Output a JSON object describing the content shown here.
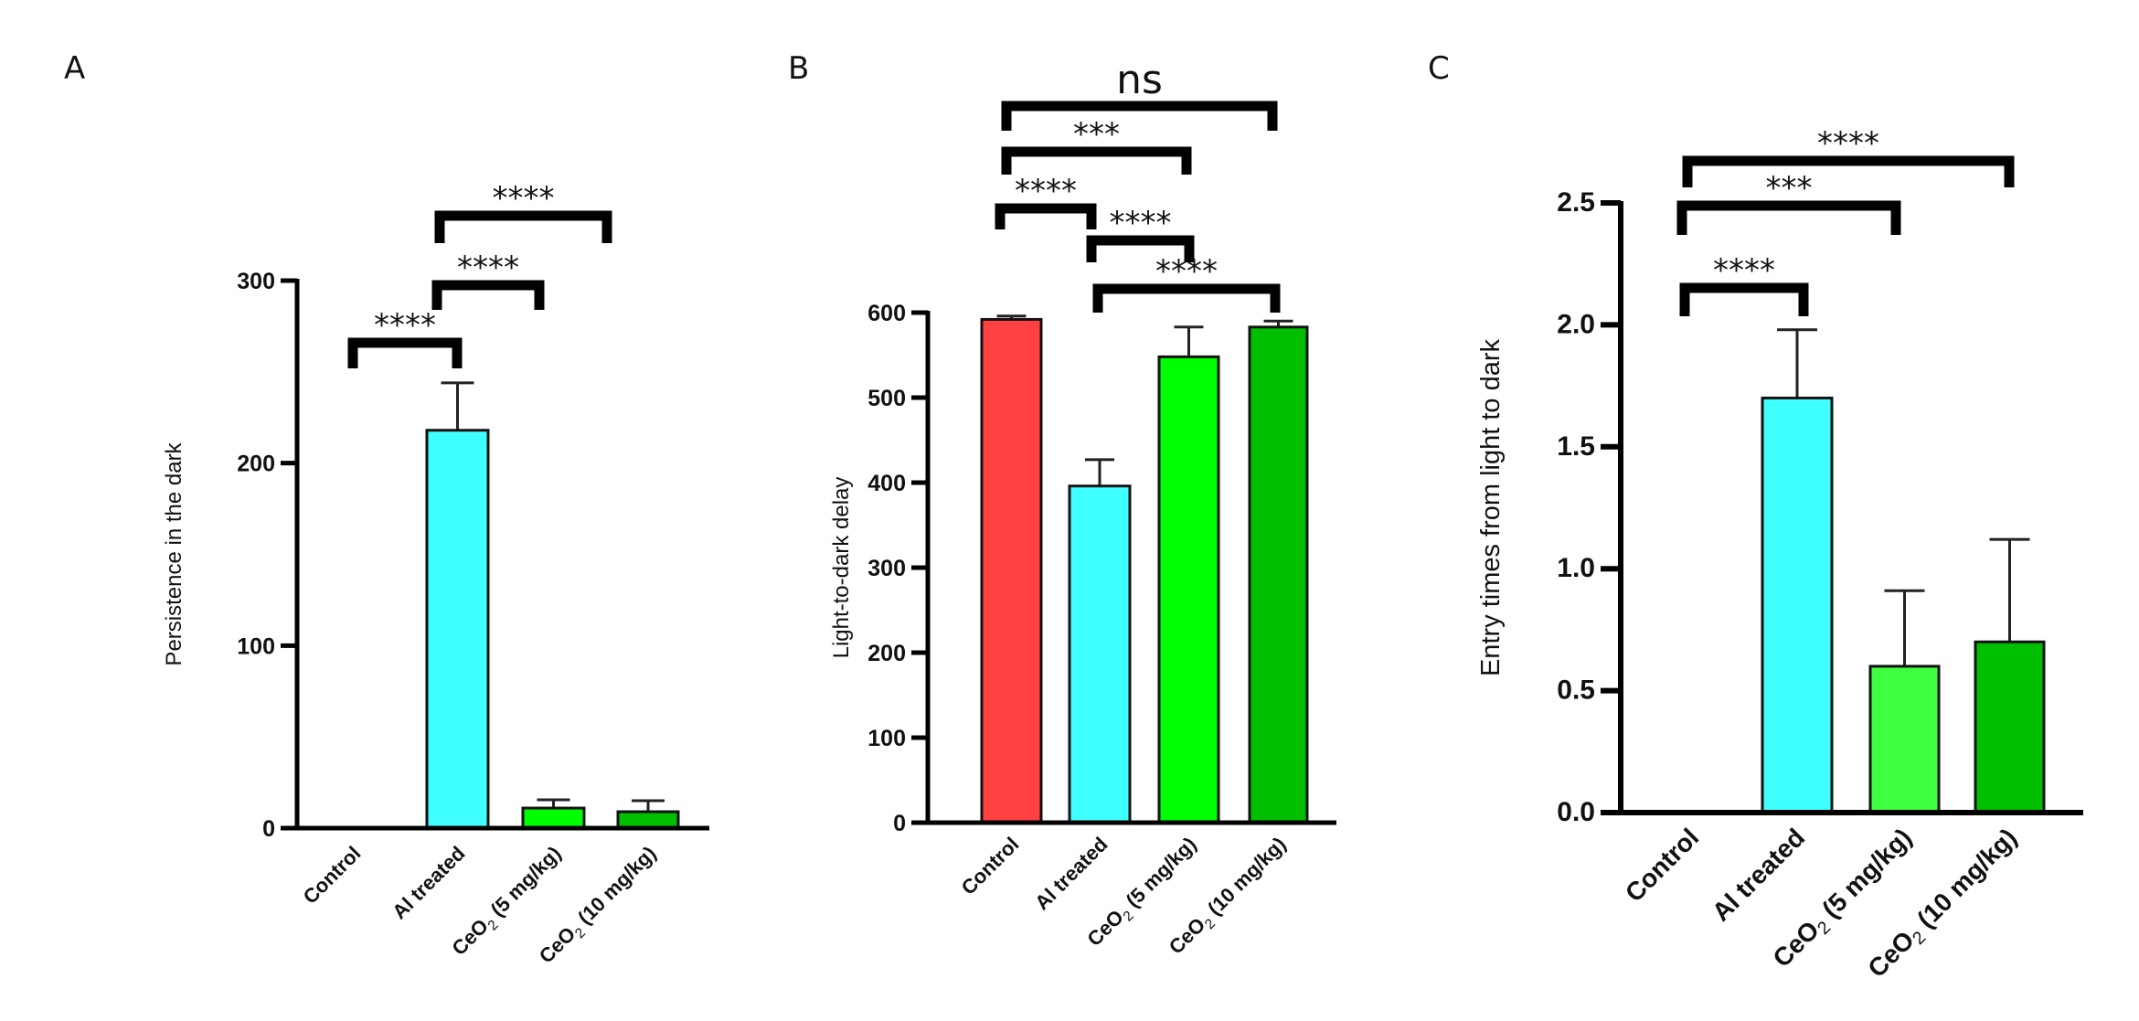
{
  "chart_data": [
    {
      "panel": "A",
      "type": "bar",
      "title": "",
      "xlabel": "",
      "ylabel": "Persistence in the dark",
      "ylim": [
        0,
        300
      ],
      "yticks": [
        0,
        100,
        200,
        300
      ],
      "ytick_labels": [
        "0",
        "100",
        "200",
        "300"
      ],
      "grid": false,
      "categories": [
        "Control",
        "Al treated",
        "CeO2 (5 mg/kg)",
        "CeO2 (10 mg/kg)"
      ],
      "category_labels": [
        {
          "main": "Control",
          "sub": "",
          "rest": ""
        },
        {
          "main": "Al treated",
          "sub": "",
          "rest": ""
        },
        {
          "main": "CeO",
          "sub": "2",
          "rest": " (5 mg/kg)"
        },
        {
          "main": "CeO",
          "sub": "2",
          "rest": " (10 mg/kg)"
        }
      ],
      "values": [
        0,
        218,
        11,
        9
      ],
      "error_upper": [
        0,
        244,
        15.5,
        15
      ],
      "colors": [
        "#ff4040",
        "#40ffff",
        "#00ff00",
        "#00bf00"
      ],
      "significance": [
        {
          "from": 0,
          "to": 1,
          "label": "****"
        },
        {
          "from": 1,
          "to": 2,
          "label": "****"
        },
        {
          "from": 1,
          "to": 3,
          "label": "****"
        }
      ]
    },
    {
      "panel": "B",
      "type": "bar",
      "title": "",
      "xlabel": "",
      "ylabel": "Light-to-dark delay",
      "ylim": [
        0,
        600
      ],
      "yticks": [
        0,
        100,
        200,
        300,
        400,
        500,
        600
      ],
      "ytick_labels": [
        "0",
        "100",
        "200",
        "300",
        "400",
        "500",
        "600"
      ],
      "grid": false,
      "categories": [
        "Control",
        "Al treated",
        "CeO2 (5 mg/kg)",
        "CeO2 (10 mg/kg)"
      ],
      "category_labels": [
        {
          "main": "Control",
          "sub": "",
          "rest": ""
        },
        {
          "main": "Al treated",
          "sub": "",
          "rest": ""
        },
        {
          "main": "CeO",
          "sub": "2",
          "rest": " (5 mg/kg)"
        },
        {
          "main": "CeO",
          "sub": "2",
          "rest": " (10 mg/kg)"
        }
      ],
      "values": [
        592,
        396,
        548,
        583
      ],
      "error_upper": [
        596,
        427,
        583,
        590
      ],
      "colors": [
        "#ff4040",
        "#40ffff",
        "#00ff00",
        "#00bf00"
      ],
      "significance": [
        {
          "from": 0,
          "to": 3,
          "label": "ns"
        },
        {
          "from": 0,
          "to": 2,
          "label": "***"
        },
        {
          "from": 0,
          "to": 1,
          "label": "****"
        },
        {
          "from": 1,
          "to": 2,
          "label": "****"
        },
        {
          "from": 1,
          "to": 3,
          "label": "****"
        }
      ]
    },
    {
      "panel": "C",
      "type": "bar",
      "title": "",
      "xlabel": "",
      "ylabel": "Entry times from light to dark",
      "ylim": [
        0,
        2.5
      ],
      "yticks": [
        0,
        0.5,
        1.0,
        1.5,
        2.0,
        2.5
      ],
      "ytick_labels": [
        "0.0",
        "0.5",
        "1.0",
        "1.5",
        "2.0",
        "2.5"
      ],
      "grid": false,
      "categories": [
        "Control",
        "Al treated",
        "CeO2 (5 mg/kg)",
        "CeO2 (10 mg/kg)"
      ],
      "category_labels": [
        {
          "main": "Control",
          "sub": "",
          "rest": ""
        },
        {
          "main": "Al treated",
          "sub": "",
          "rest": ""
        },
        {
          "main": "CeO",
          "sub": "2",
          "rest": " (5 mg/kg)"
        },
        {
          "main": "CeO",
          "sub": "2",
          "rest": " (10 mg/kg)"
        }
      ],
      "values": [
        0,
        1.7,
        0.6,
        0.7
      ],
      "error_upper": [
        0,
        1.98,
        0.91,
        1.12
      ],
      "colors": [
        "#ff4040",
        "#40ffff",
        "#40ff40",
        "#00bf00"
      ],
      "significance": [
        {
          "from": 0,
          "to": 3,
          "label": "****"
        },
        {
          "from": 0,
          "to": 2,
          "label": "***"
        },
        {
          "from": 0,
          "to": 1,
          "label": "****"
        }
      ]
    }
  ],
  "panel_letters": [
    "A",
    "B",
    "C"
  ]
}
